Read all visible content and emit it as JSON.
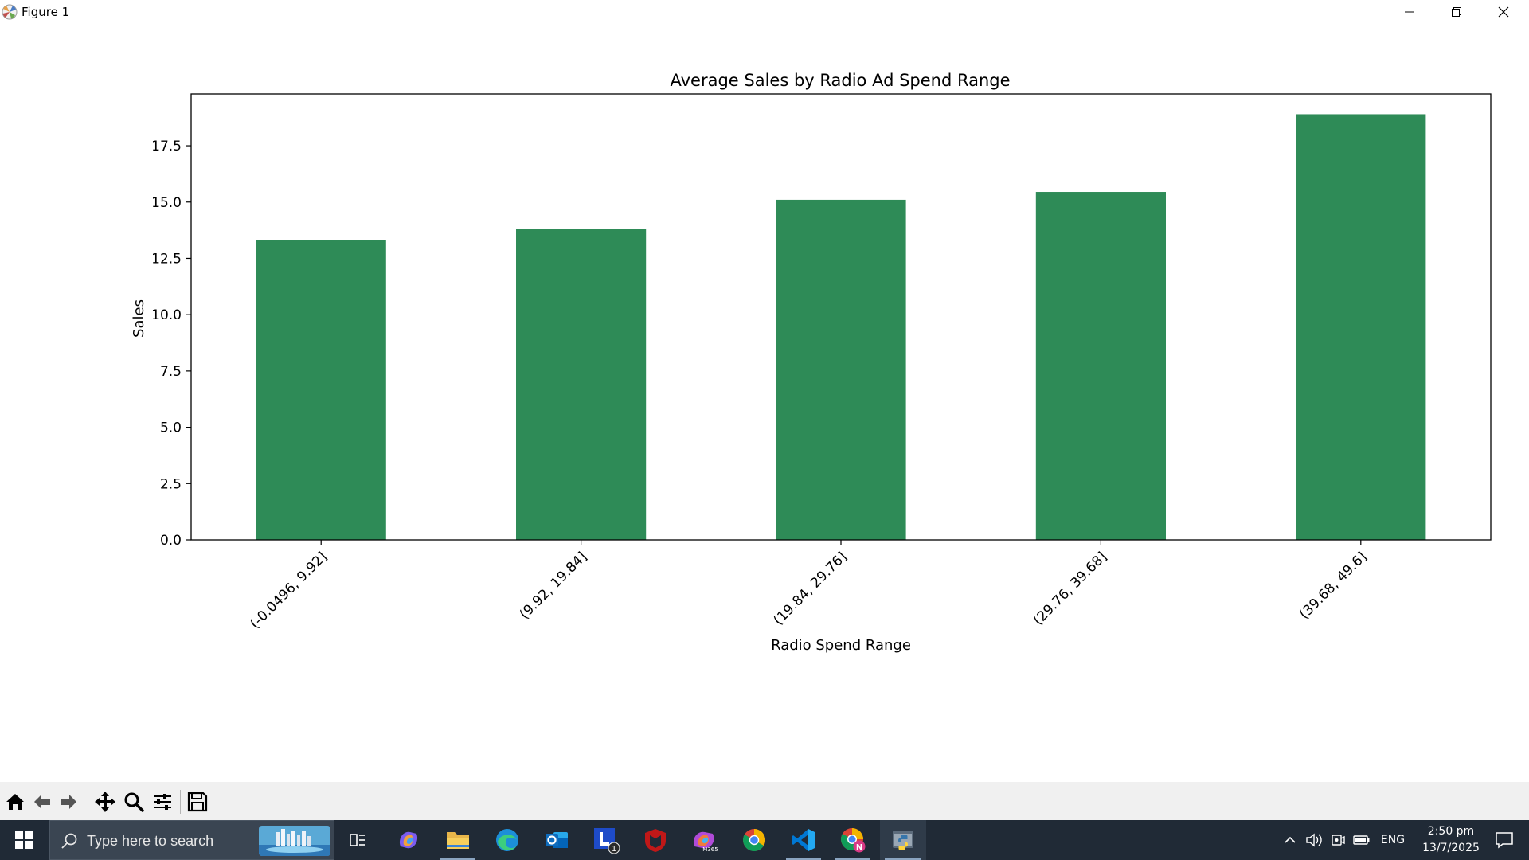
{
  "window": {
    "title": "Figure 1"
  },
  "chart_data": {
    "type": "bar",
    "title": "Average Sales by Radio Ad Spend Range",
    "xlabel": "Radio Spend Range",
    "ylabel": "Sales",
    "categories": [
      "(-0.0496, 9.92]",
      "(9.92, 19.84]",
      "(19.84, 29.76]",
      "(29.76, 39.68]",
      "(39.68, 49.6]"
    ],
    "values": [
      13.3,
      13.8,
      15.1,
      15.45,
      18.9
    ],
    "ylim": [
      0,
      19.8
    ],
    "yticks": [
      "0.0",
      "2.5",
      "5.0",
      "7.5",
      "10.0",
      "12.5",
      "15.0",
      "17.5"
    ],
    "bar_color": "#2e8b57",
    "grid": false,
    "legend": "none"
  },
  "toolbar": {
    "buttons": [
      "home-icon",
      "back-icon",
      "forward-icon",
      "pan-icon",
      "zoom-icon",
      "configure-icon",
      "save-icon"
    ]
  },
  "taskbar": {
    "search_placeholder": "Type here to search",
    "apps": [
      "copilot",
      "file-explorer",
      "edge",
      "outlook",
      "lync",
      "mcafee",
      "m365",
      "chrome",
      "vscode",
      "chrome-profile",
      "python"
    ],
    "lync_badge": "1",
    "m365_label": "M365",
    "chrome_profile_badge": "N",
    "language": "ENG",
    "time": "2:50 pm",
    "date": "13/7/2025",
    "accent_color": "#202a36"
  }
}
